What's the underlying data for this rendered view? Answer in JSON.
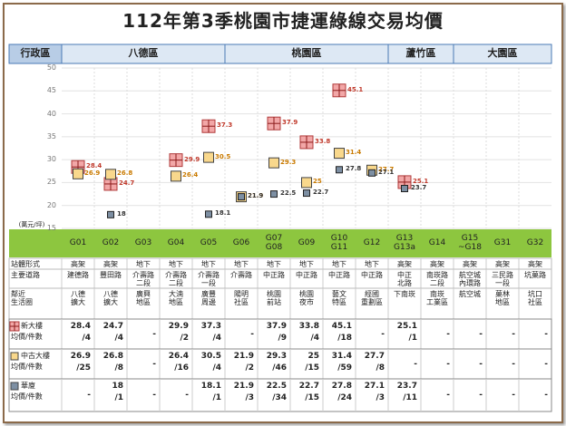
{
  "title": "112年第3季桃園市捷運綠線交易均價",
  "header": {
    "label": "行政區",
    "districts": [
      "八德區",
      "桃園區",
      "蘆竹區",
      "大園區"
    ]
  },
  "chart_data": {
    "type": "scatter",
    "y_label": "(萬元/坪)",
    "categories": [
      "G01",
      "G02",
      "G03",
      "G04",
      "G05",
      "G06",
      "G07\nG08",
      "G09",
      "G10\nG11",
      "G12",
      "G13\nG13a",
      "G14",
      "G15\n~G18",
      "G31",
      "G32"
    ],
    "ylim": [
      15,
      50
    ],
    "yticks": [
      15,
      20,
      25,
      30,
      35,
      40,
      45,
      50
    ],
    "grid": true,
    "series": [
      {
        "name": "新大樓",
        "color": "#f2a7a7",
        "values": [
          28.4,
          24.7,
          null,
          29.9,
          37.3,
          null,
          37.9,
          33.8,
          45.1,
          null,
          25.1,
          null,
          null,
          null,
          null
        ]
      },
      {
        "name": "中古大樓",
        "color": "#f9d88c",
        "values": [
          26.9,
          26.8,
          null,
          26.4,
          30.5,
          21.9,
          29.3,
          25,
          31.4,
          27.7,
          null,
          null,
          null,
          null,
          null
        ]
      },
      {
        "name": "華廈",
        "color": "#7d8fa3",
        "values": [
          null,
          18,
          null,
          null,
          18.1,
          21.9,
          22.5,
          22.7,
          27.8,
          27.1,
          23.7,
          null,
          null,
          null,
          null
        ]
      }
    ]
  },
  "table": {
    "rows": [
      {
        "label": "站體形式",
        "cells": [
          "高架",
          "高架",
          "地下",
          "地下",
          "地下",
          "地下",
          "地下",
          "地下",
          "地下",
          "地下",
          "高架",
          "高架",
          "高架",
          "高架",
          "高架"
        ]
      },
      {
        "label": "主要道路",
        "cells": [
          "建德路",
          "豐田路",
          "介壽路\n二段",
          "介壽路\n二段",
          "介壽路\n一段",
          "介壽路",
          "中正路",
          "中正路",
          "中正路",
          "中正路",
          "中正\n北路",
          "南崁路\n二段",
          "航空城\n內環路",
          "三民路\n一段",
          "坑菓路"
        ]
      },
      {
        "label": "鄰近\n生活圈",
        "cells": [
          "八德\n擴大",
          "八德\n擴大",
          "廣興\n地區",
          "大湳\n地區",
          "廣豐\n周邊",
          "陽明\n社區",
          "桃園\n前站",
          "桃園\n夜市",
          "藝文\n特區",
          "經國\n重劃區",
          "下南崁",
          "南崁\n工業區",
          "航空城",
          "菓林\n地區",
          "坑口\n社區"
        ]
      }
    ],
    "price_label": "均價/件數",
    "missing": "-",
    "counts": [
      [
        "/4",
        "/4",
        null,
        "/2",
        "/4",
        null,
        "/9",
        "/4",
        "/18",
        null,
        "/1",
        null,
        null,
        null,
        null
      ],
      [
        "/25",
        "/8",
        null,
        "/16",
        "/4",
        "/2",
        "/46",
        "/15",
        "/59",
        "/8",
        null,
        null,
        null,
        null,
        null
      ],
      [
        null,
        "/1",
        null,
        null,
        "/1",
        "/3",
        "/34",
        "/15",
        "/24",
        "/3",
        "/11",
        null,
        null,
        null,
        null
      ]
    ]
  }
}
